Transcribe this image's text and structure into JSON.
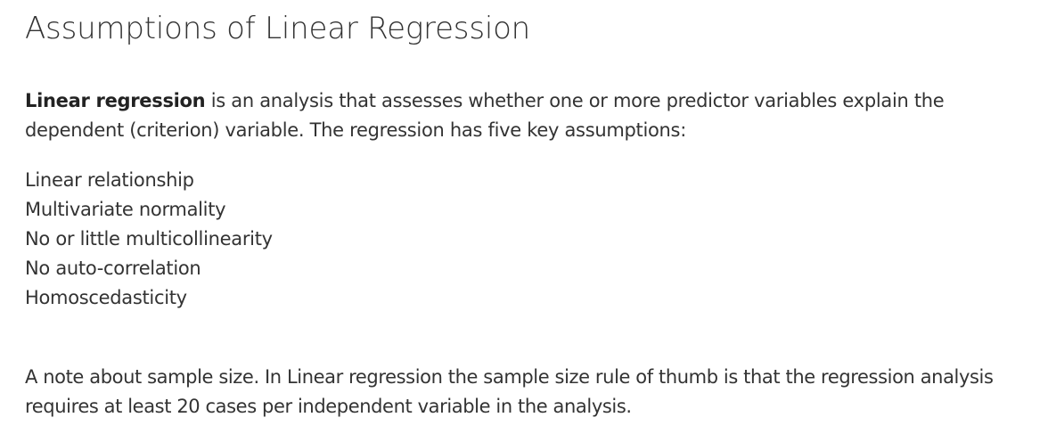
{
  "article": {
    "title": "Assumptions of Linear Regression",
    "intro": {
      "term": "Linear regression",
      "line1_rest": " is an analysis that assesses whether one or more predictor variables explain the",
      "line2": "dependent (criterion) variable.  The regression has five key assumptions:"
    },
    "assumptions": [
      "Linear relationship",
      "Multivariate normality",
      "No or little multicollinearity",
      "No auto-correlation",
      "Homoscedasticity"
    ],
    "note": {
      "line1": "A note about sample size.  In Linear regression the sample size rule of thumb is that the regression analysis",
      "line2": "requires at least 20 cases per independent variable in the analysis."
    }
  }
}
